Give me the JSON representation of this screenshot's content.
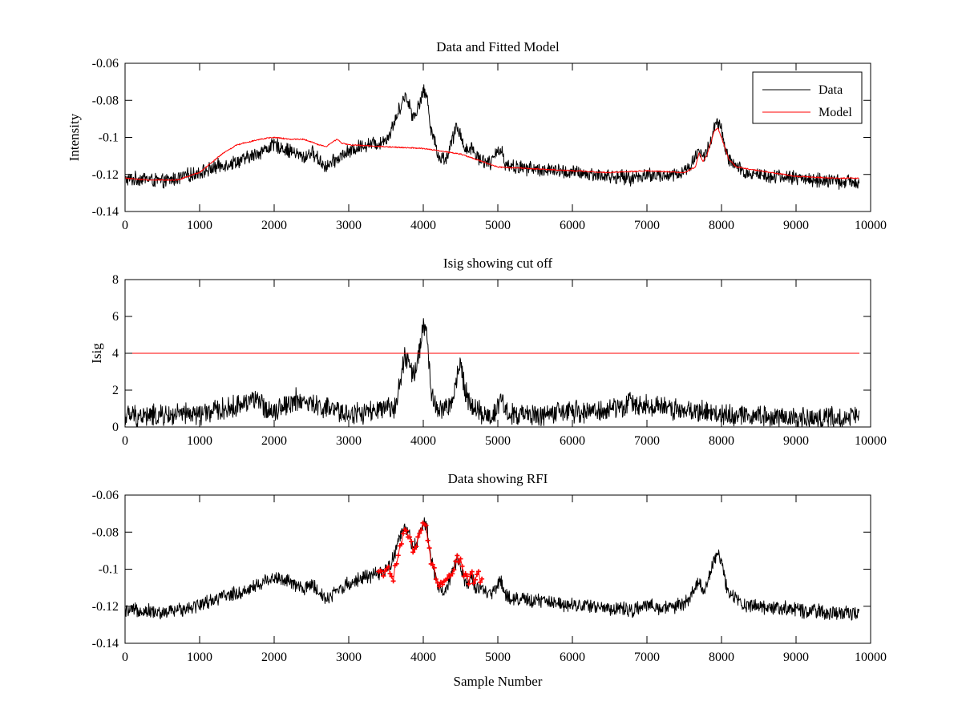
{
  "figure": {
    "background": "#ffffff",
    "data_color": "#000000",
    "accent_color": "#ff0000"
  },
  "chart_data": [
    {
      "id": "top",
      "type": "line",
      "title": "Data and Fitted Model",
      "xlabel": "",
      "ylabel": "Intensity",
      "xlim": [
        0,
        10000
      ],
      "ylim": [
        -0.14,
        -0.06
      ],
      "xticks": [
        0,
        1000,
        2000,
        3000,
        4000,
        5000,
        6000,
        7000,
        8000,
        9000,
        10000
      ],
      "xtick_labels": [
        "0",
        "1000",
        "2000",
        "3000",
        "4000",
        "5000",
        "6000",
        "7000",
        "8000",
        "9000",
        "10000"
      ],
      "yticks": [
        -0.14,
        -0.12,
        -0.1,
        -0.08,
        -0.06
      ],
      "ytick_labels": [
        "-0.14",
        "-0.12",
        "-0.1",
        "-0.08",
        "-0.06"
      ],
      "grid": false,
      "legend": {
        "placement": "top-right",
        "entries": [
          {
            "label": "Data",
            "color": "#000000"
          },
          {
            "label": "Model",
            "color": "#ff0000"
          }
        ]
      },
      "sample_count": 9850,
      "series": [
        {
          "name": "Data",
          "color": "#000000",
          "noise": 0.0045,
          "x": [
            0,
            250,
            500,
            800,
            1000,
            1300,
            1600,
            1800,
            2000,
            2200,
            2400,
            2500,
            2600,
            2700,
            2800,
            2900,
            3000,
            3200,
            3400,
            3500,
            3550,
            3650,
            3700,
            3750,
            3800,
            3850,
            3900,
            3950,
            4000,
            4050,
            4100,
            4200,
            4300,
            4400,
            4450,
            4500,
            4550,
            4600,
            4650,
            4700,
            4800,
            4900,
            5000,
            5050,
            5100,
            5200,
            5500,
            6000,
            6500,
            6800,
            7000,
            7200,
            7400,
            7550,
            7600,
            7650,
            7700,
            7750,
            7800,
            7850,
            7900,
            7950,
            8000,
            8050,
            8100,
            8200,
            8300,
            8500,
            8800,
            9000,
            9300,
            9600,
            9850
          ],
          "y": [
            -0.123,
            -0.122,
            -0.124,
            -0.121,
            -0.119,
            -0.115,
            -0.112,
            -0.108,
            -0.104,
            -0.107,
            -0.111,
            -0.108,
            -0.112,
            -0.116,
            -0.113,
            -0.11,
            -0.108,
            -0.104,
            -0.103,
            -0.101,
            -0.098,
            -0.088,
            -0.082,
            -0.078,
            -0.08,
            -0.088,
            -0.087,
            -0.082,
            -0.075,
            -0.078,
            -0.094,
            -0.11,
            -0.112,
            -0.1,
            -0.094,
            -0.098,
            -0.105,
            -0.108,
            -0.104,
            -0.11,
            -0.112,
            -0.114,
            -0.108,
            -0.106,
            -0.114,
            -0.116,
            -0.117,
            -0.119,
            -0.121,
            -0.122,
            -0.12,
            -0.121,
            -0.12,
            -0.117,
            -0.114,
            -0.11,
            -0.107,
            -0.111,
            -0.108,
            -0.103,
            -0.095,
            -0.092,
            -0.096,
            -0.107,
            -0.112,
            -0.116,
            -0.119,
            -0.12,
            -0.121,
            -0.122,
            -0.123,
            -0.124,
            -0.124
          ]
        },
        {
          "name": "Model",
          "color": "#ff0000",
          "noise": 0.0004,
          "x": [
            0,
            300,
            700,
            1000,
            1300,
            1500,
            1800,
            2000,
            2200,
            2400,
            2600,
            2700,
            2800,
            2850,
            2900,
            3000,
            3500,
            4000,
            4500,
            5000,
            5500,
            6000,
            6500,
            7000,
            7500,
            7650,
            7700,
            7750,
            7800,
            7900,
            7950,
            8000,
            8100,
            8200,
            8500,
            9000,
            9500,
            9850
          ],
          "y": [
            -0.122,
            -0.123,
            -0.123,
            -0.119,
            -0.109,
            -0.104,
            -0.101,
            -0.1,
            -0.101,
            -0.101,
            -0.104,
            -0.105,
            -0.102,
            -0.101,
            -0.103,
            -0.104,
            -0.105,
            -0.106,
            -0.109,
            -0.116,
            -0.117,
            -0.118,
            -0.119,
            -0.118,
            -0.119,
            -0.116,
            -0.108,
            -0.113,
            -0.11,
            -0.097,
            -0.095,
            -0.1,
            -0.112,
            -0.116,
            -0.118,
            -0.121,
            -0.122,
            -0.122
          ]
        }
      ]
    },
    {
      "id": "middle",
      "type": "line",
      "title": "Isig showing cut off",
      "xlabel": "",
      "ylabel": "Isig",
      "xlim": [
        0,
        10000
      ],
      "ylim": [
        0,
        8
      ],
      "xticks": [
        0,
        1000,
        2000,
        3000,
        4000,
        5000,
        6000,
        7000,
        8000,
        9000,
        10000
      ],
      "xtick_labels": [
        "0",
        "1000",
        "2000",
        "3000",
        "4000",
        "5000",
        "6000",
        "7000",
        "8000",
        "9000",
        "10000"
      ],
      "yticks": [
        0,
        2,
        4,
        6,
        8
      ],
      "ytick_labels": [
        "0",
        "2",
        "4",
        "6",
        "8"
      ],
      "grid": false,
      "sample_count": 9850,
      "series": [
        {
          "name": "Isig",
          "color": "#000000",
          "noise": 0.7,
          "clip_min": 0,
          "x": [
            0,
            500,
            1000,
            1500,
            1700,
            1900,
            2000,
            2300,
            2500,
            2800,
            3000,
            3300,
            3600,
            3700,
            3750,
            3800,
            3850,
            3900,
            3950,
            4000,
            4050,
            4100,
            4200,
            4400,
            4450,
            4500,
            4550,
            4600,
            4700,
            4800,
            4900,
            5000,
            5050,
            5100,
            5300,
            6000,
            6500,
            6800,
            7000,
            7500,
            8000,
            8500,
            9000,
            9850
          ],
          "y": [
            0.6,
            0.6,
            0.7,
            1.1,
            1.6,
            1.0,
            0.9,
            1.5,
            1.2,
            0.9,
            0.7,
            0.8,
            1.0,
            2.6,
            3.8,
            3.5,
            2.9,
            3.0,
            4.2,
            5.5,
            5.0,
            2.0,
            0.8,
            1.3,
            2.8,
            3.5,
            2.2,
            1.5,
            1.0,
            0.7,
            0.5,
            1.0,
            1.9,
            0.8,
            0.6,
            0.8,
            0.9,
            1.3,
            1.2,
            0.9,
            0.7,
            0.6,
            0.5,
            0.5
          ]
        },
        {
          "name": "cut off",
          "color": "#ff0000",
          "noise": 0,
          "x": [
            0,
            9850
          ],
          "y": [
            4,
            4
          ]
        }
      ]
    },
    {
      "id": "bottom",
      "type": "line",
      "title": "Data showing RFI",
      "xlabel": "Sample Number",
      "ylabel": "",
      "xlim": [
        0,
        10000
      ],
      "ylim": [
        -0.14,
        -0.06
      ],
      "xticks": [
        0,
        1000,
        2000,
        3000,
        4000,
        5000,
        6000,
        7000,
        8000,
        9000,
        10000
      ],
      "xtick_labels": [
        "0",
        "1000",
        "2000",
        "3000",
        "4000",
        "5000",
        "6000",
        "7000",
        "8000",
        "9000",
        "10000"
      ],
      "yticks": [
        -0.14,
        -0.12,
        -0.1,
        -0.08,
        -0.06
      ],
      "ytick_labels": [
        "-0.14",
        "-0.12",
        "-0.1",
        "-0.08",
        "-0.06"
      ],
      "grid": false,
      "sample_count": 9850,
      "series": [
        {
          "name": "Data",
          "color": "#000000",
          "noise": 0.0045,
          "x": [
            0,
            250,
            500,
            800,
            1000,
            1300,
            1600,
            1800,
            2000,
            2200,
            2400,
            2500,
            2600,
            2700,
            2800,
            2900,
            3000,
            3200,
            3400,
            3500,
            3550,
            3650,
            3700,
            3750,
            3800,
            3850,
            3900,
            3950,
            4000,
            4050,
            4100,
            4200,
            4300,
            4400,
            4450,
            4500,
            4550,
            4600,
            4650,
            4700,
            4800,
            4900,
            5000,
            5050,
            5100,
            5200,
            5500,
            6000,
            6500,
            6800,
            7000,
            7200,
            7400,
            7550,
            7600,
            7650,
            7700,
            7750,
            7800,
            7850,
            7900,
            7950,
            8000,
            8050,
            8100,
            8200,
            8300,
            8500,
            8800,
            9000,
            9300,
            9600,
            9850
          ],
          "y": [
            -0.123,
            -0.122,
            -0.124,
            -0.121,
            -0.119,
            -0.115,
            -0.112,
            -0.108,
            -0.104,
            -0.107,
            -0.111,
            -0.108,
            -0.112,
            -0.116,
            -0.113,
            -0.11,
            -0.108,
            -0.104,
            -0.103,
            -0.101,
            -0.098,
            -0.088,
            -0.082,
            -0.078,
            -0.08,
            -0.088,
            -0.087,
            -0.082,
            -0.075,
            -0.078,
            -0.094,
            -0.11,
            -0.112,
            -0.1,
            -0.094,
            -0.098,
            -0.105,
            -0.108,
            -0.104,
            -0.11,
            -0.112,
            -0.114,
            -0.108,
            -0.106,
            -0.114,
            -0.116,
            -0.117,
            -0.119,
            -0.121,
            -0.122,
            -0.12,
            -0.121,
            -0.12,
            -0.117,
            -0.114,
            -0.11,
            -0.107,
            -0.111,
            -0.108,
            -0.103,
            -0.095,
            -0.092,
            -0.096,
            -0.107,
            -0.112,
            -0.116,
            -0.119,
            -0.12,
            -0.121,
            -0.122,
            -0.123,
            -0.124,
            -0.124
          ]
        },
        {
          "name": "RFI",
          "color": "#ff0000",
          "noise": 0.0035,
          "markers": true,
          "marker": "+",
          "x": [
            3400,
            3500,
            3550,
            3600,
            3650,
            3700,
            3750,
            3800,
            3850,
            3900,
            3950,
            4000,
            4050,
            4100,
            4200,
            4300,
            4400,
            4450,
            4500,
            4550,
            4600,
            4650,
            4700,
            4750,
            4800
          ],
          "y": [
            -0.103,
            -0.102,
            -0.1,
            -0.104,
            -0.094,
            -0.084,
            -0.08,
            -0.082,
            -0.088,
            -0.087,
            -0.082,
            -0.075,
            -0.079,
            -0.094,
            -0.108,
            -0.108,
            -0.1,
            -0.093,
            -0.097,
            -0.104,
            -0.107,
            -0.103,
            -0.106,
            -0.104,
            -0.107
          ]
        }
      ]
    }
  ]
}
